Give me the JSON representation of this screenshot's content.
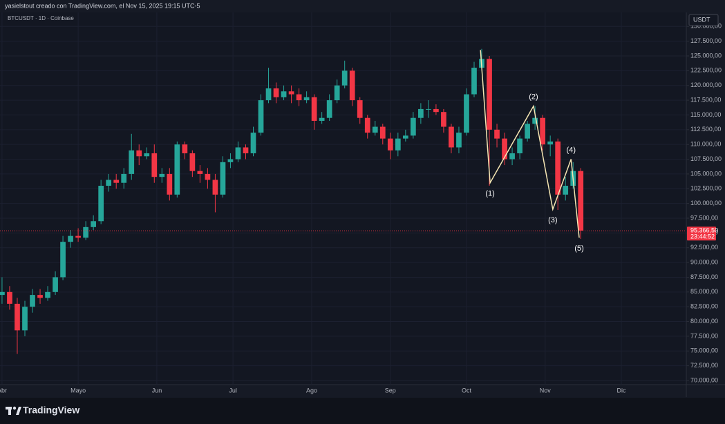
{
  "header": {
    "caption": "yasielstout creado con TradingView.com, el Nov 15, 2025 19:15 UTC-5"
  },
  "footer": {
    "brand": "TradingView"
  },
  "chart_data": {
    "type": "candlestick",
    "title": "BTCUSDT · 1D · Coinbase",
    "currency": "USDT",
    "up_color": "#26a69a",
    "down_color": "#f23645",
    "x": [
      0,
      3,
      6,
      9,
      12,
      15,
      18,
      21,
      24,
      27,
      30,
      33,
      36,
      39,
      42,
      45,
      48,
      51,
      54,
      57,
      60,
      63,
      66,
      69,
      72,
      75,
      78,
      81,
      84,
      87,
      90,
      93,
      96,
      99,
      102,
      105,
      108,
      111,
      114,
      117,
      120,
      123,
      126,
      129,
      132,
      135,
      138,
      141,
      144,
      147,
      150,
      153,
      156,
      159,
      162,
      165,
      168,
      171,
      174,
      177,
      180,
      183,
      186,
      189,
      192,
      195,
      198,
      201,
      204,
      207,
      210,
      213,
      216,
      219,
      222,
      225,
      228
    ],
    "open": [
      84500,
      85000,
      83000,
      78500,
      82500,
      84500,
      84000,
      85000,
      87500,
      93500,
      94500,
      94200,
      96000,
      97000,
      103000,
      104000,
      103500,
      105000,
      109000,
      108000,
      108500,
      104500,
      105000,
      101500,
      110000,
      108500,
      105500,
      105000,
      104000,
      101500,
      107000,
      107500,
      109500,
      108500,
      112000,
      117500,
      119500,
      118000,
      119000,
      118500,
      117500,
      118000,
      114000,
      114500,
      117500,
      120000,
      122500,
      117500,
      114500,
      112000,
      113000,
      111000,
      109000,
      111000,
      111500,
      114500,
      116000,
      116000,
      115500,
      113000,
      109500,
      112000,
      118500,
      123000,
      124500,
      112500,
      111000,
      107500,
      108500,
      111000,
      113500,
      114500,
      110000,
      110500,
      101500,
      103000,
      105500
    ],
    "high": [
      87500,
      86000,
      84000,
      83500,
      85500,
      85500,
      86000,
      88500,
      94500,
      95500,
      95800,
      97000,
      98000,
      104000,
      105000,
      105000,
      106000,
      111800,
      110000,
      109500,
      110000,
      106000,
      106000,
      110500,
      110500,
      109000,
      106500,
      106000,
      105000,
      108000,
      108500,
      110500,
      110000,
      113000,
      118500,
      123000,
      120500,
      120000,
      120000,
      119500,
      119000,
      118500,
      115500,
      118500,
      121000,
      124200,
      123000,
      118000,
      115000,
      114000,
      113500,
      112000,
      112000,
      112500,
      115500,
      117000,
      117500,
      116800,
      116000,
      113500,
      113000,
      119500,
      124000,
      126200,
      125000,
      113500,
      112000,
      109500,
      111500,
      114000,
      116500,
      115000,
      111500,
      111000,
      104500,
      107000,
      106000
    ],
    "low": [
      83000,
      82000,
      74500,
      77500,
      81500,
      83000,
      83500,
      84500,
      87000,
      92500,
      93500,
      93800,
      95500,
      96500,
      102000,
      102500,
      102500,
      104000,
      106500,
      107500,
      103500,
      103500,
      100500,
      101000,
      107500,
      104500,
      103500,
      102500,
      98500,
      101000,
      106000,
      107000,
      107500,
      108000,
      111500,
      117000,
      117000,
      117500,
      117000,
      116500,
      117000,
      112500,
      113500,
      114000,
      117000,
      119500,
      116500,
      113500,
      111000,
      111500,
      110000,
      107500,
      108000,
      110500,
      111000,
      113500,
      114500,
      115000,
      112000,
      108500,
      108500,
      111500,
      118000,
      122500,
      103000,
      109500,
      106500,
      106500,
      107500,
      110500,
      112500,
      109000,
      108000,
      98900,
      100500,
      102500,
      94000
    ],
    "close": [
      85000,
      83000,
      78500,
      82500,
      84500,
      84000,
      85000,
      87500,
      93500,
      94500,
      94200,
      96000,
      97000,
      103000,
      104000,
      103500,
      105000,
      109000,
      108000,
      108500,
      104500,
      105000,
      101500,
      110000,
      108500,
      105500,
      105000,
      104000,
      101500,
      107000,
      107500,
      109500,
      108500,
      112000,
      117500,
      119500,
      118000,
      119000,
      118500,
      117500,
      118000,
      114000,
      114500,
      117500,
      120000,
      122500,
      117500,
      114500,
      112000,
      113000,
      111000,
      109000,
      111000,
      111500,
      114500,
      116000,
      116000,
      115500,
      113000,
      109500,
      112000,
      118500,
      123000,
      124500,
      112500,
      111000,
      107500,
      108500,
      111000,
      113500,
      114500,
      110000,
      110500,
      101500,
      103000,
      105500,
      95400
    ],
    "xlim": [
      -0.8,
      269.6
    ],
    "xticks": [
      {
        "value": 0,
        "label": "Abr"
      },
      {
        "value": 30,
        "label": "Mayo"
      },
      {
        "value": 61,
        "label": "Jun"
      },
      {
        "value": 91,
        "label": "Jul"
      },
      {
        "value": 122,
        "label": "Ago"
      },
      {
        "value": 153,
        "label": "Sep"
      },
      {
        "value": 183,
        "label": "Oct"
      },
      {
        "value": 214,
        "label": "Nov"
      },
      {
        "value": 244,
        "label": "Dic"
      }
    ],
    "ylim": [
      69298,
      132372
    ],
    "yticks": [
      {
        "value": 70000,
        "label": "70.000,00"
      },
      {
        "value": 72500,
        "label": "72.500,00"
      },
      {
        "value": 75000,
        "label": "75.000,00"
      },
      {
        "value": 77500,
        "label": "77.500,00"
      },
      {
        "value": 80000,
        "label": "80.000,00"
      },
      {
        "value": 82500,
        "label": "82.500,00"
      },
      {
        "value": 85000,
        "label": "85.000,00"
      },
      {
        "value": 87500,
        "label": "87.500,00"
      },
      {
        "value": 90000,
        "label": "90.000,00"
      },
      {
        "value": 92500,
        "label": "92.500,00"
      },
      {
        "value": 95000,
        "label": "95.000,00"
      },
      {
        "value": 97500,
        "label": "97.500,00"
      },
      {
        "value": 100000,
        "label": "100.000,00"
      },
      {
        "value": 102500,
        "label": "102.500,00"
      },
      {
        "value": 105000,
        "label": "105.000,00"
      },
      {
        "value": 107500,
        "label": "107.500,00"
      },
      {
        "value": 110000,
        "label": "110.000,00"
      },
      {
        "value": 112500,
        "label": "112.500,00"
      },
      {
        "value": 115000,
        "label": "115.000,00"
      },
      {
        "value": 117500,
        "label": "117.500,00"
      },
      {
        "value": 120000,
        "label": "120.000,00"
      },
      {
        "value": 122500,
        "label": "122.500,00"
      },
      {
        "value": 125000,
        "label": "125.000,00"
      },
      {
        "value": 127500,
        "label": "127.500,00"
      },
      {
        "value": 130000,
        "label": "130.000,00"
      }
    ],
    "last_price": {
      "value": 95366.5,
      "label": "95.366,50"
    },
    "countdown": "23:44:52",
    "waves": {
      "color": "#f5e6b3",
      "x": [
        188.5,
        192.3,
        209.4,
        217,
        224.2,
        227.4
      ],
      "y": [
        126000,
        103500,
        116500,
        99000,
        107500,
        94200
      ],
      "labels": [
        null,
        "(1)",
        "(2)",
        "(3)",
        "(4)",
        "(5)"
      ]
    }
  }
}
